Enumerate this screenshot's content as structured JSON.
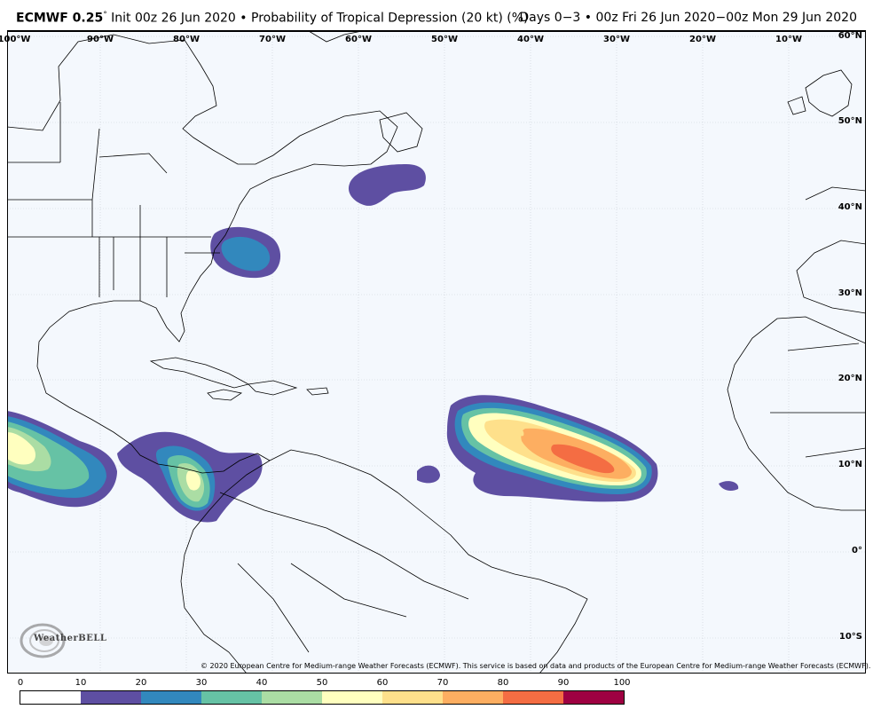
{
  "title": {
    "model": "ECMWF 0.25",
    "degree": "°",
    "init": "Init 00z 26 Jun 2020",
    "bullet": "•",
    "product": "Probability of Tropical Depression (20 kt) (%)",
    "range": "Days 0−3 • 00z Fri 26 Jun 2020−00z Mon 29 Jun 2020"
  },
  "map": {
    "longitude_labels": [
      "100°W",
      "90°W",
      "80°W",
      "70°W",
      "60°W",
      "50°W",
      "40°W",
      "30°W",
      "20°W",
      "10°W"
    ],
    "latitude_labels": [
      "60°N",
      "50°N",
      "40°N",
      "30°N",
      "20°N",
      "10°N",
      "0°",
      "10°S"
    ],
    "background_color": "#f4f8fd",
    "coastline_color": "#000000"
  },
  "credit": "© 2020 European Centre for Medium-range Weather Forecasts (ECMWF). This service is based on data and products of the European Centre for Medium-range Weather Forecasts (ECMWF).",
  "logo": {
    "text": "WeatherBELL",
    "icon": "weatherbell-swirl-icon"
  },
  "colorbar": {
    "ticks": [
      "0",
      "10",
      "20",
      "30",
      "40",
      "50",
      "60",
      "70",
      "80",
      "90",
      "100"
    ],
    "colors": [
      "#ffffff",
      "#5e4fa2",
      "#3288bd",
      "#66c2a5",
      "#abdda4",
      "#ffffbf",
      "#fee08b",
      "#fdae61",
      "#f46d43",
      "#9e0142"
    ]
  }
}
